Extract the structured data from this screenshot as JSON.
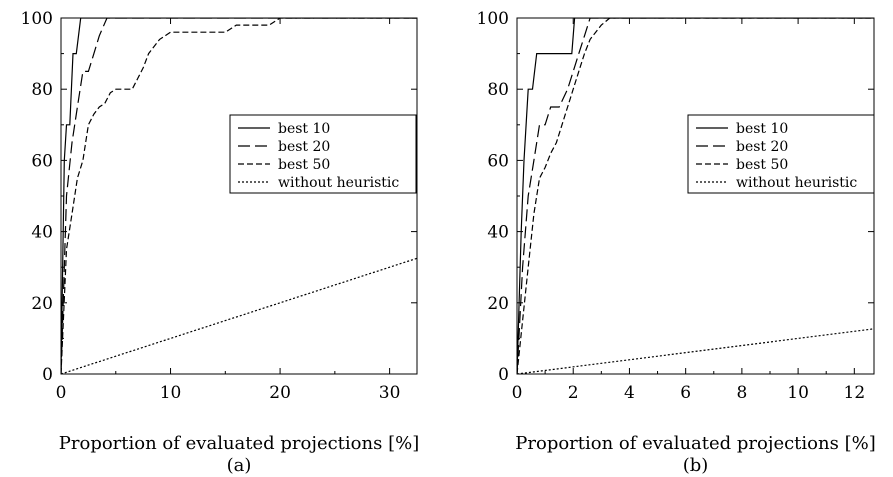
{
  "chart_data": [
    {
      "type": "line",
      "caption": "(a)",
      "xlabel": "Proportion of evaluated projections [%]",
      "ylabel": "",
      "xlim": [
        0,
        32.5
      ],
      "ylim": [
        0,
        100
      ],
      "xticks": [
        0,
        10,
        20,
        30
      ],
      "yticks": [
        0,
        20,
        40,
        60,
        80,
        100
      ],
      "grid": false,
      "legend_position": "right-middle",
      "series": [
        {
          "name": "best 10",
          "style": "solid",
          "x": [
            0,
            0.3,
            0.5,
            0.8,
            1.1,
            1.4,
            1.8,
            2.2,
            32.5
          ],
          "y": [
            0,
            60,
            70,
            70,
            90,
            90,
            100,
            100,
            100
          ]
        },
        {
          "name": "best 20",
          "style": "longdash",
          "x": [
            0,
            0.5,
            1.0,
            1.5,
            2.0,
            2.5,
            3.0,
            3.5,
            4.2,
            32.5
          ],
          "y": [
            0,
            50,
            65,
            75,
            85,
            85,
            90,
            95,
            100,
            100
          ]
        },
        {
          "name": "best 50",
          "style": "shortdash",
          "x": [
            0,
            0.5,
            1.0,
            1.5,
            2.0,
            2.5,
            3.0,
            3.5,
            4.0,
            4.5,
            5.0,
            5.5,
            6.5,
            7.0,
            7.5,
            8.0,
            9.0,
            10.0,
            12.0,
            15.0,
            16.0,
            19.0,
            20.0,
            32.5
          ],
          "y": [
            0,
            35,
            45,
            55,
            60,
            70,
            73,
            75,
            76,
            79,
            80,
            80,
            80,
            83,
            86,
            90,
            94,
            96,
            96,
            96,
            98,
            98,
            100,
            100
          ]
        },
        {
          "name": "without heuristic",
          "style": "dotted",
          "x": [
            0,
            32.5
          ],
          "y": [
            0,
            32.5
          ]
        }
      ]
    },
    {
      "type": "line",
      "caption": "(b)",
      "xlabel": "Proportion of evaluated projections [%]",
      "ylabel": "",
      "xlim": [
        0,
        12.7
      ],
      "ylim": [
        0,
        100
      ],
      "xticks": [
        0,
        2,
        4,
        6,
        8,
        10,
        12
      ],
      "yticks": [
        0,
        20,
        40,
        60,
        80,
        100
      ],
      "grid": false,
      "legend_position": "right-middle",
      "series": [
        {
          "name": "best 10",
          "style": "solid",
          "x": [
            0,
            0.15,
            0.25,
            0.4,
            0.55,
            0.7,
            1.0,
            1.5,
            1.95,
            2.05,
            12.7
          ],
          "y": [
            0,
            40,
            60,
            80,
            80,
            90,
            90,
            90,
            90,
            100,
            100
          ]
        },
        {
          "name": "best 20",
          "style": "longdash",
          "x": [
            0,
            0.2,
            0.4,
            0.6,
            0.8,
            1.0,
            1.2,
            1.5,
            1.8,
            2.0,
            2.2,
            2.4,
            2.6,
            12.7
          ],
          "y": [
            0,
            30,
            50,
            60,
            70,
            70,
            75,
            75,
            80,
            85,
            90,
            95,
            100,
            100
          ]
        },
        {
          "name": "best 50",
          "style": "shortdash",
          "x": [
            0,
            0.2,
            0.4,
            0.6,
            0.8,
            1.0,
            1.2,
            1.4,
            1.6,
            1.8,
            2.0,
            2.2,
            2.4,
            2.6,
            2.8,
            3.0,
            3.3,
            12.7
          ],
          "y": [
            0,
            15,
            30,
            45,
            55,
            58,
            62,
            65,
            70,
            75,
            80,
            85,
            90,
            94,
            96,
            98,
            100,
            100
          ]
        },
        {
          "name": "without heuristic",
          "style": "dotted",
          "x": [
            0,
            12.7
          ],
          "y": [
            0,
            12.7
          ]
        }
      ]
    }
  ]
}
